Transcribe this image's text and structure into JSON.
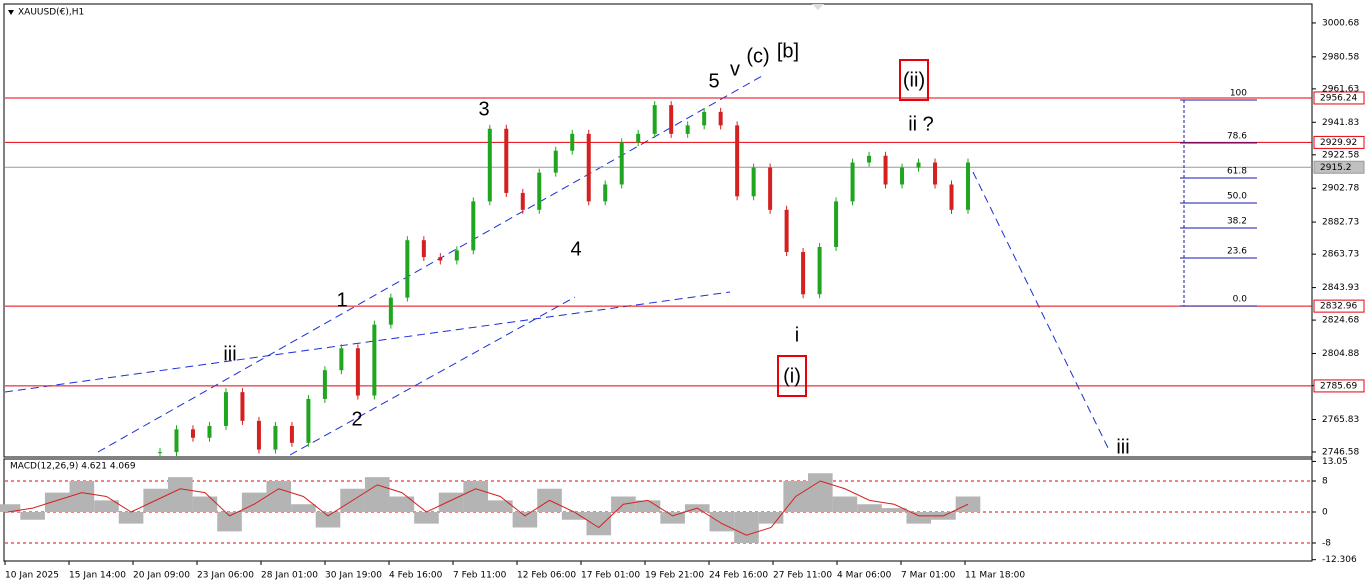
{
  "chart_data": {
    "type": "candlestick",
    "title": "XAUUSD(€),H1",
    "x_labels": [
      "10 Jan 2025",
      "15 Jan 14:00",
      "20 Jan 09:00",
      "23 Jan 06:00",
      "28 Jan 01:00",
      "30 Jan 19:00",
      "4 Feb 16:00",
      "7 Feb 11:00",
      "12 Feb 06:00",
      "17 Feb 01:00",
      "19 Feb 21:00",
      "24 Feb 16:00",
      "27 Feb 11:00",
      "4 Mar 06:00",
      "7 Mar 01:00",
      "11 Mar 18:00"
    ],
    "values": [
      2746.5,
      2760,
      2755,
      2762,
      2782,
      2765,
      2748,
      2762,
      2752,
      2778,
      2795,
      2808,
      2780,
      2822,
      2838,
      2872,
      2862,
      2860,
      2866,
      2895,
      2938,
      2900,
      2890,
      2912,
      2925,
      2935,
      2895,
      2905,
      2930,
      2935,
      2952,
      2935,
      2940,
      2948,
      2940,
      2898,
      2915,
      2890,
      2865,
      2840,
      2868,
      2895,
      2918,
      2922,
      2905,
      2915,
      2918,
      2905,
      2890,
      2918
    ],
    "up_color": "#1fa51f",
    "down_color": "#d42020",
    "ylim": [
      2743.6,
      3011.3
    ],
    "yticks": [
      3000.68,
      2980.58,
      2961.63,
      2941.83,
      2922.58,
      2902.78,
      2882.73,
      2863.73,
      2843.93,
      2824.68,
      2804.88,
      2785.83,
      2765.83,
      2746.58
    ],
    "levels": [
      {
        "value": 2956.24,
        "color": "#e8000b"
      },
      {
        "value": 2929.92,
        "color": "#e8000b"
      },
      {
        "value": 2915.2,
        "color": "#9a9a9a"
      },
      {
        "value": 2832.96,
        "color": "#e8000b"
      },
      {
        "value": 2785.69,
        "color": "#e8000b"
      }
    ],
    "fib": {
      "levels": [
        "100",
        "78.6",
        "61.8",
        "50.0",
        "38.2",
        "23.6",
        "0.0"
      ],
      "color": "#1a1aa8"
    },
    "annotations": [
      {
        "text": "(c)",
        "color": "#1a2fd8"
      },
      {
        "text": "[b]",
        "color": "#138a13"
      },
      {
        "text": "v",
        "color": "#e020e0"
      },
      {
        "text": "5",
        "color": "#000000"
      },
      {
        "text": "3",
        "color": "#000000"
      },
      {
        "text": "4",
        "color": "#000000"
      },
      {
        "text": "1",
        "color": "#000000"
      },
      {
        "text": "2",
        "color": "#000000"
      },
      {
        "text": "iii",
        "color": "#e020e0"
      },
      {
        "text": "i",
        "color": "#e020e0"
      },
      {
        "text": "(i)",
        "color": "#1a2fd8"
      },
      {
        "text": "(ii)",
        "color": "#1a2fd8"
      },
      {
        "text": "ii ?",
        "color": "#e020e0"
      },
      {
        "text": "iii",
        "color": "#e020e0"
      }
    ],
    "macd": {
      "title": "MACD(12,26,9) 4.621 4.069",
      "values": [
        2,
        -2,
        5,
        8,
        3,
        -3,
        6,
        9,
        4,
        -5,
        5,
        8,
        2,
        -4,
        6,
        9,
        4,
        -3,
        5,
        8,
        3,
        -4,
        6,
        -2,
        -6,
        4,
        3,
        -3,
        2,
        -5,
        -8,
        -3,
        8,
        10,
        4,
        2,
        1,
        -3,
        -2,
        4
      ],
      "signal": [
        0,
        1,
        3,
        5,
        4,
        0,
        3,
        6,
        5,
        -1,
        2,
        6,
        4,
        -1,
        3,
        7,
        5,
        0,
        3,
        6,
        4,
        -1,
        3,
        0,
        -4,
        2,
        3,
        -1,
        1,
        -3,
        -6,
        -4,
        4,
        8,
        6,
        3,
        2,
        -1,
        -1,
        2
      ],
      "color": "#b4b4b4",
      "signal_color": "#d42020",
      "ylim": [
        -12.39,
        13.42
      ],
      "yticks": [
        13.05,
        8,
        0,
        -8,
        -12.306
      ]
    }
  }
}
